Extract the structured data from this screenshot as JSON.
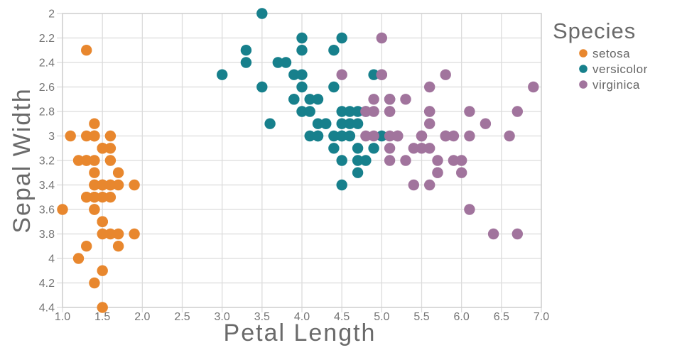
{
  "chart_data": {
    "type": "scatter",
    "title": "",
    "xlabel": "Petal Length",
    "ylabel": "Sepal Width",
    "legend_title": "Species",
    "legend_position": "top-right",
    "grid": true,
    "xlim": [
      1.0,
      7.0
    ],
    "ylim_top_to_bottom": [
      2.0,
      4.4
    ],
    "y_axis_reversed": true,
    "marker_diameter_px": 15,
    "x_ticks": {
      "values": [
        1.0,
        1.5,
        2.0,
        2.5,
        3.0,
        3.5,
        4.0,
        4.5,
        5.0,
        5.5,
        6.0,
        6.5,
        7.0
      ],
      "labels": [
        "1.0",
        "1.5",
        "2.0",
        "2.5",
        "3.0",
        "3.5",
        "4.0",
        "4.5",
        "5.0",
        "5.5",
        "6.0",
        "6.5",
        "7.0"
      ]
    },
    "y_ticks": {
      "values": [
        2.0,
        2.2,
        2.4,
        2.6,
        2.8,
        3.0,
        3.2,
        3.4,
        3.6,
        3.8,
        4.0,
        4.2,
        4.4
      ],
      "labels": [
        "2",
        "2.2",
        "2.4",
        "2.6",
        "2.8",
        "3",
        "3.2",
        "3.4",
        "3.6",
        "3.8",
        "4",
        "4.2",
        "4.4"
      ]
    },
    "style": {
      "grid_color": "#dcdcdc",
      "axis_line_color": "#d0d0d0",
      "tick_label_color": "#757575",
      "title_color": "#6a6a6a",
      "legend_text_color": "#666666",
      "background": "#ffffff"
    },
    "series": [
      {
        "name": "setosa",
        "color": "#E8872E",
        "points": [
          [
            1.4,
            3.5
          ],
          [
            1.4,
            3.0
          ],
          [
            1.3,
            3.2
          ],
          [
            1.5,
            3.1
          ],
          [
            1.4,
            3.6
          ],
          [
            1.7,
            3.9
          ],
          [
            1.4,
            3.4
          ],
          [
            1.5,
            3.4
          ],
          [
            1.4,
            2.9
          ],
          [
            1.5,
            3.1
          ],
          [
            1.5,
            3.7
          ],
          [
            1.6,
            3.4
          ],
          [
            1.4,
            3.0
          ],
          [
            1.1,
            3.0
          ],
          [
            1.2,
            4.0
          ],
          [
            1.5,
            4.4
          ],
          [
            1.3,
            3.9
          ],
          [
            1.4,
            3.5
          ],
          [
            1.7,
            3.8
          ],
          [
            1.5,
            3.8
          ],
          [
            1.7,
            3.4
          ],
          [
            1.5,
            3.7
          ],
          [
            1.0,
            3.6
          ],
          [
            1.7,
            3.3
          ],
          [
            1.9,
            3.4
          ],
          [
            1.6,
            3.0
          ],
          [
            1.6,
            3.4
          ],
          [
            1.5,
            3.5
          ],
          [
            1.4,
            3.4
          ],
          [
            1.6,
            3.2
          ],
          [
            1.6,
            3.1
          ],
          [
            1.5,
            3.4
          ],
          [
            1.5,
            4.1
          ],
          [
            1.4,
            4.2
          ],
          [
            1.5,
            3.1
          ],
          [
            1.2,
            3.2
          ],
          [
            1.3,
            3.5
          ],
          [
            1.4,
            3.6
          ],
          [
            1.3,
            3.0
          ],
          [
            1.5,
            3.4
          ],
          [
            1.3,
            3.5
          ],
          [
            1.3,
            2.3
          ],
          [
            1.3,
            3.2
          ],
          [
            1.6,
            3.5
          ],
          [
            1.9,
            3.8
          ],
          [
            1.4,
            3.0
          ],
          [
            1.6,
            3.8
          ],
          [
            1.4,
            3.2
          ],
          [
            1.5,
            3.7
          ],
          [
            1.4,
            3.3
          ]
        ]
      },
      {
        "name": "versicolor",
        "color": "#17808C",
        "points": [
          [
            4.7,
            3.2
          ],
          [
            4.5,
            3.2
          ],
          [
            4.9,
            3.1
          ],
          [
            4.0,
            2.3
          ],
          [
            4.6,
            2.8
          ],
          [
            4.5,
            2.8
          ],
          [
            4.7,
            3.3
          ],
          [
            3.3,
            2.4
          ],
          [
            4.6,
            2.9
          ],
          [
            3.9,
            2.7
          ],
          [
            3.5,
            2.0
          ],
          [
            4.2,
            3.0
          ],
          [
            4.0,
            2.2
          ],
          [
            4.7,
            2.9
          ],
          [
            3.6,
            2.9
          ],
          [
            4.4,
            3.1
          ],
          [
            4.5,
            3.0
          ],
          [
            4.1,
            2.7
          ],
          [
            4.5,
            2.2
          ],
          [
            3.9,
            2.5
          ],
          [
            4.8,
            3.2
          ],
          [
            4.0,
            2.8
          ],
          [
            4.9,
            2.5
          ],
          [
            4.7,
            2.8
          ],
          [
            4.3,
            2.9
          ],
          [
            4.4,
            3.0
          ],
          [
            4.8,
            2.8
          ],
          [
            5.0,
            3.0
          ],
          [
            4.5,
            2.9
          ],
          [
            3.5,
            2.6
          ],
          [
            3.8,
            2.4
          ],
          [
            3.7,
            2.4
          ],
          [
            3.9,
            2.7
          ],
          [
            5.1,
            2.7
          ],
          [
            4.5,
            3.0
          ],
          [
            4.5,
            3.4
          ],
          [
            4.7,
            3.1
          ],
          [
            4.4,
            2.3
          ],
          [
            4.1,
            3.0
          ],
          [
            4.0,
            2.5
          ],
          [
            4.4,
            2.6
          ],
          [
            4.6,
            3.0
          ],
          [
            4.0,
            2.6
          ],
          [
            3.3,
            2.3
          ],
          [
            4.2,
            2.7
          ],
          [
            4.2,
            3.0
          ],
          [
            4.2,
            2.9
          ],
          [
            4.3,
            2.9
          ],
          [
            3.0,
            2.5
          ],
          [
            4.1,
            2.8
          ]
        ]
      },
      {
        "name": "virginica",
        "color": "#A1749D",
        "points": [
          [
            6.0,
            3.3
          ],
          [
            5.1,
            2.7
          ],
          [
            5.9,
            3.0
          ],
          [
            5.6,
            2.9
          ],
          [
            5.8,
            3.0
          ],
          [
            6.6,
            3.0
          ],
          [
            4.5,
            2.5
          ],
          [
            6.3,
            2.9
          ],
          [
            5.8,
            2.5
          ],
          [
            6.1,
            3.6
          ],
          [
            5.1,
            3.2
          ],
          [
            5.3,
            2.7
          ],
          [
            5.5,
            3.0
          ],
          [
            5.0,
            2.5
          ],
          [
            5.1,
            2.8
          ],
          [
            5.3,
            3.2
          ],
          [
            5.5,
            3.0
          ],
          [
            6.7,
            3.8
          ],
          [
            6.9,
            2.6
          ],
          [
            5.0,
            2.2
          ],
          [
            5.7,
            3.2
          ],
          [
            4.9,
            2.8
          ],
          [
            6.7,
            2.8
          ],
          [
            4.9,
            2.7
          ],
          [
            5.7,
            3.3
          ],
          [
            6.0,
            3.2
          ],
          [
            4.8,
            2.8
          ],
          [
            4.9,
            3.0
          ],
          [
            5.6,
            2.8
          ],
          [
            5.8,
            3.0
          ],
          [
            6.1,
            2.8
          ],
          [
            6.4,
            3.8
          ],
          [
            5.6,
            2.8
          ],
          [
            5.1,
            2.8
          ],
          [
            5.6,
            2.6
          ],
          [
            6.1,
            3.0
          ],
          [
            5.6,
            3.4
          ],
          [
            5.5,
            3.1
          ],
          [
            4.8,
            3.0
          ],
          [
            5.4,
            3.1
          ],
          [
            5.6,
            3.1
          ],
          [
            5.1,
            3.1
          ],
          [
            5.1,
            2.7
          ],
          [
            5.9,
            3.2
          ],
          [
            5.7,
            3.3
          ],
          [
            5.2,
            3.0
          ],
          [
            5.0,
            2.5
          ],
          [
            5.2,
            3.0
          ],
          [
            5.4,
            3.4
          ],
          [
            5.1,
            3.0
          ]
        ]
      }
    ]
  }
}
